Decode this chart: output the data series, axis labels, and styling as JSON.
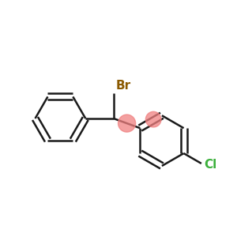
{
  "background_color": "#ffffff",
  "br_label": "Br",
  "cl_label": "Cl",
  "br_color": "#8B5A00",
  "cl_color": "#3CB03C",
  "bond_color": "#1a1a1a",
  "bond_width": 1.8,
  "highlight_color": "#F08080",
  "highlight_alpha": 0.75,
  "figsize": [
    3.0,
    3.0
  ],
  "dpi": 100,
  "xlim": [
    -2.3,
    2.5
  ],
  "ylim": [
    -1.9,
    1.7
  ]
}
